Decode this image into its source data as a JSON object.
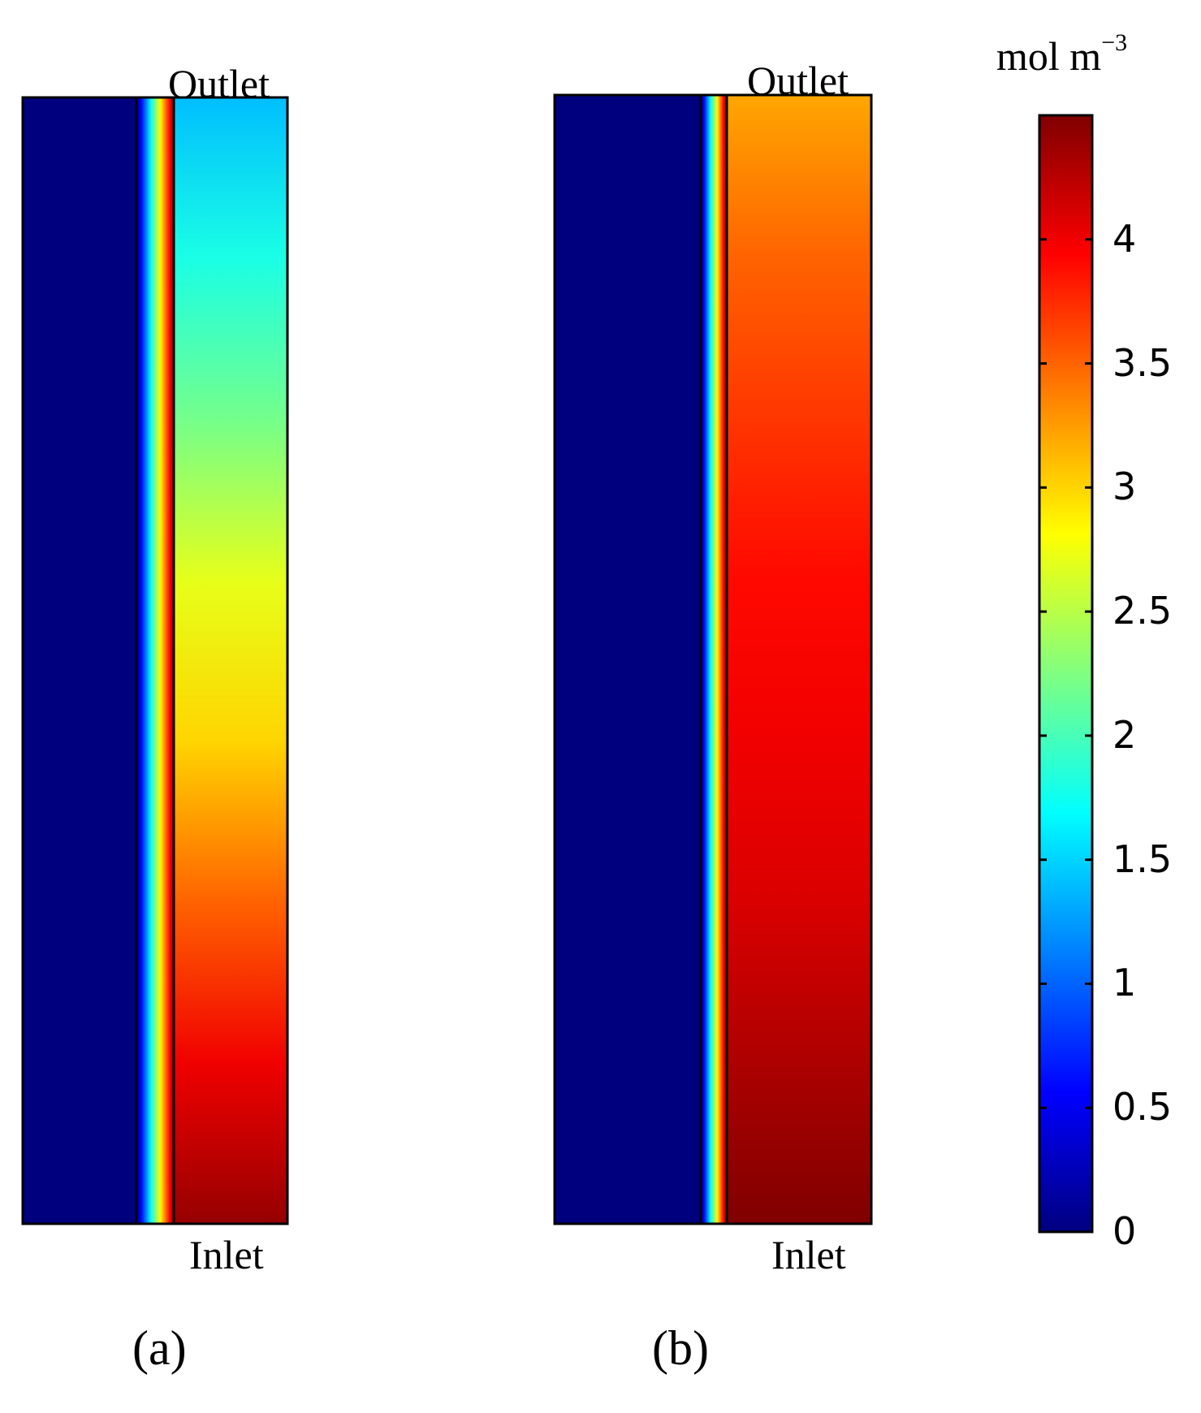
{
  "panels": [
    {
      "caption": "(a)",
      "top_label": "Outlet",
      "bottom_label": "Inlet"
    },
    {
      "caption": "(b)",
      "top_label": "Outlet",
      "bottom_label": "Inlet"
    }
  ],
  "chart_data": {
    "type": "heatmap",
    "colormap": "jet",
    "colorbar": {
      "unit_base": "mol m",
      "unit_exponent": "−3",
      "min": 0,
      "max": 4.5,
      "ticks": [
        0,
        0.5,
        1,
        1.5,
        2,
        2.5,
        3,
        3.5,
        4
      ],
      "tick_labels": [
        "0",
        "0.5",
        "1",
        "1.5",
        "2",
        "2.5",
        "3",
        "3.5",
        "4"
      ]
    },
    "fields": [
      {
        "panel": "(a)",
        "left_domain_value": 0,
        "channel_profile_inlet_to_outlet": [
          4.4,
          4.0,
          3.5,
          3.0,
          2.7,
          2.2,
          1.8,
          1.4
        ]
      },
      {
        "panel": "(b)",
        "left_domain_value": 0,
        "channel_profile_inlet_to_outlet": [
          4.5,
          4.3,
          4.1,
          4.0,
          3.9,
          3.7,
          3.5,
          3.2
        ]
      }
    ]
  }
}
